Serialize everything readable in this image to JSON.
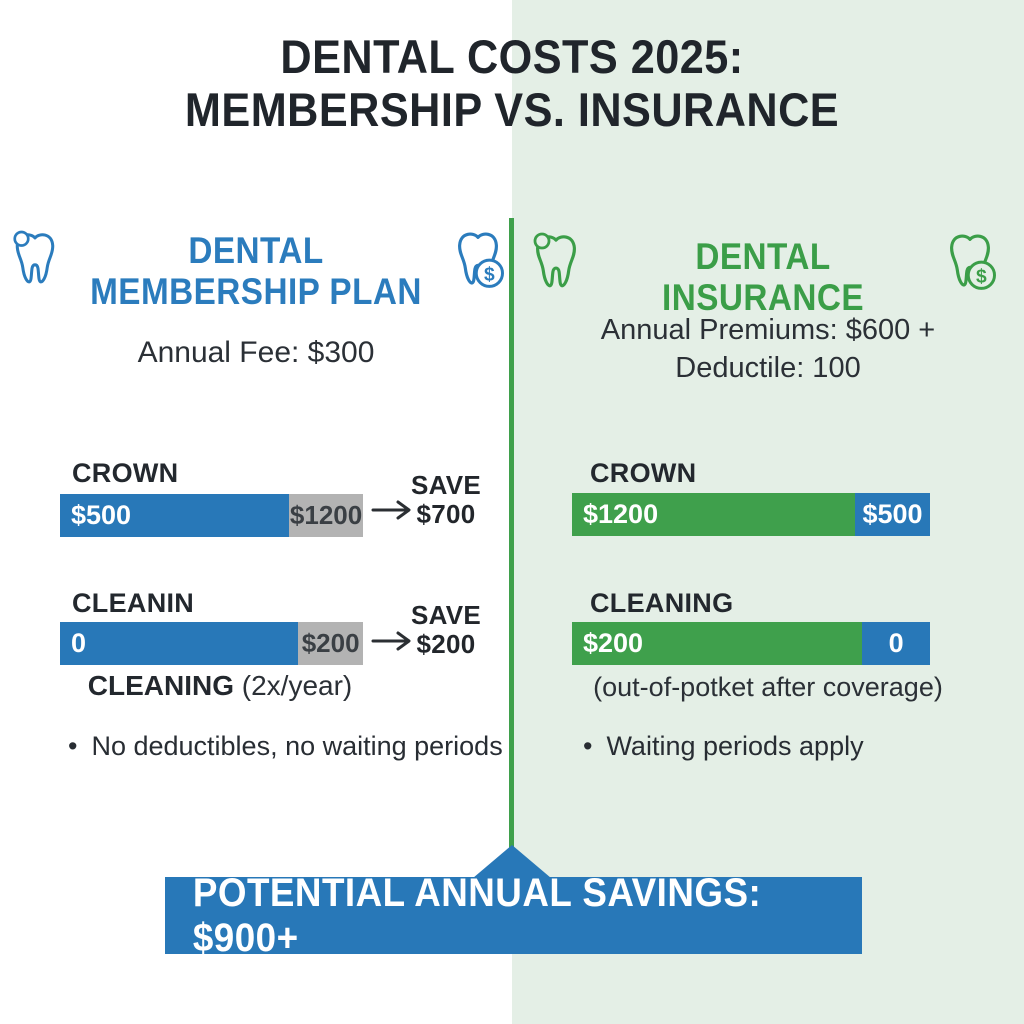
{
  "title": {
    "line1": "DENTAL COSTS 2025:",
    "line2": "MEMBERSHIP VS. INSURANCE"
  },
  "membership": {
    "heading": "DENTAL MEMBERSHIP PLAN",
    "fee": "Annual Fee: $300",
    "rows": [
      {
        "label": "CROWN",
        "primary_value": "$500",
        "secondary_value": "$1200",
        "primary_pct": 72,
        "save_word": "SAVE",
        "save_amount": "$700"
      },
      {
        "label": "CLEANIN",
        "primary_value": "0",
        "secondary_value": "$200",
        "primary_pct": 75,
        "save_word": "SAVE",
        "save_amount": "$200"
      }
    ],
    "caption_bold": "CLEANING",
    "caption_rest": " (2x/year)",
    "bullet_marker": "•",
    "bullet": "No deductibles, no waiting periods"
  },
  "insurance": {
    "heading": "DENTAL INSURANCE",
    "premium_line1": "Annual Premiums: $600 +",
    "premium_line2": "Deductile: 100",
    "rows": [
      {
        "label": "CROWN",
        "primary_value": "$1200",
        "secondary_value": "$500",
        "primary_pct": 76
      },
      {
        "label": "CLEANING",
        "primary_value": "$200",
        "secondary_value": "0",
        "primary_pct": 78
      }
    ],
    "caption": "(out-of-potket after coverage)",
    "bullet_marker": "•",
    "bullet": "Waiting periods apply"
  },
  "banner": {
    "text": "POTENTIAL ANNUAL SAVINGS: $900+"
  },
  "icons": {
    "dollar_glyph": "$"
  },
  "colors": {
    "blue": "#2878b8",
    "green": "#3fa04c",
    "light_green_bg": "#e4efe6",
    "gray_bar": "#b3b3b3",
    "dark_text": "#23282e"
  },
  "chart_data": {
    "type": "bar",
    "title": "Dental Costs 2025: Membership vs. Insurance",
    "panels": [
      {
        "name": "Dental Membership Plan",
        "annual_fee": 300,
        "items": [
          {
            "procedure": "Crown",
            "plan_cost": 500,
            "regular_cost": 1200,
            "savings": 700
          },
          {
            "procedure": "Cleaning (2x/year)",
            "plan_cost": 0,
            "regular_cost": 200,
            "savings": 200
          }
        ],
        "note": "No deductibles, no waiting periods"
      },
      {
        "name": "Dental Insurance",
        "annual_premiums": 600,
        "deductible": 100,
        "items": [
          {
            "procedure": "Crown",
            "insurance_cost": 1200,
            "out_of_pocket": 500
          },
          {
            "procedure": "Cleaning",
            "insurance_cost": 200,
            "out_of_pocket": 0
          }
        ],
        "note": "Waiting periods apply"
      }
    ],
    "potential_annual_savings": "$900+"
  }
}
